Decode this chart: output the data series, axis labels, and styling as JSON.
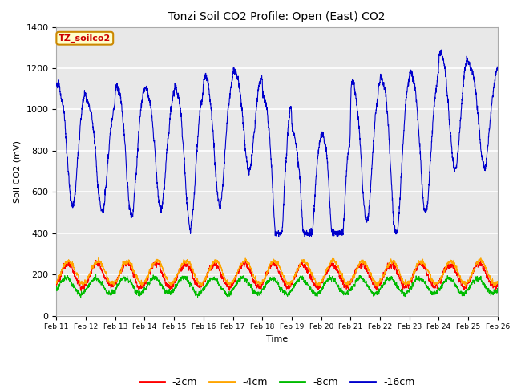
{
  "title": "Tonzi Soil CO2 Profile: Open (East) CO2",
  "ylabel": "Soil CO2 (mV)",
  "xlabel": "Time",
  "ylim": [
    0,
    1400
  ],
  "x_tick_labels": [
    "Feb 11",
    "Feb 12",
    "Feb 13",
    "Feb 14",
    "Feb 15",
    "Feb 16",
    "Feb 17",
    "Feb 18",
    "Feb 19",
    "Feb 20",
    "Feb 21",
    "Feb 22",
    "Feb 23",
    "Feb 24",
    "Feb 25",
    "Feb 26"
  ],
  "colors": {
    "-2cm": "#FF0000",
    "-4cm": "#FFA500",
    "-8cm": "#00BB00",
    "-16cm": "#0000CC"
  },
  "legend_label": "TZ_soilco2",
  "legend_bg": "#FFFFCC",
  "legend_border": "#CC8800",
  "plot_bg": "#E8E8E8",
  "n_points": 3000
}
